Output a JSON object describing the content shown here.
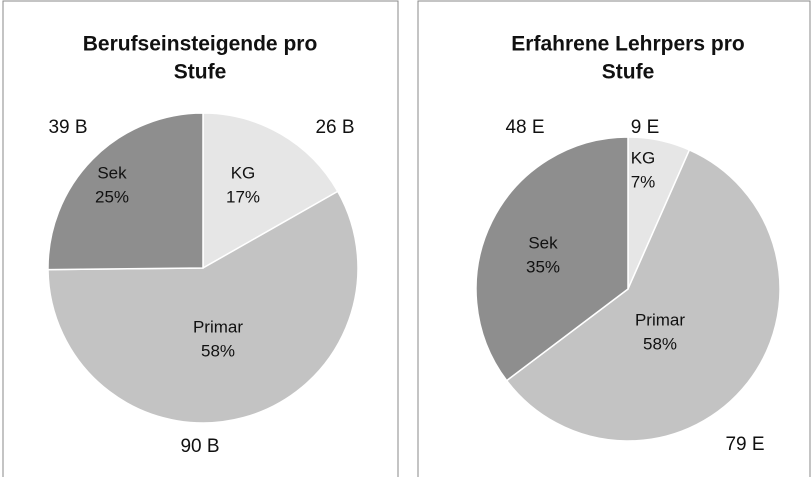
{
  "chart_data": [
    {
      "type": "pie",
      "title": [
        "Berufseinsteigende pro",
        "Stufe"
      ],
      "categories": [
        "KG",
        "Primar",
        "Sek"
      ],
      "values": [
        26,
        90,
        39
      ],
      "value_labels": [
        "26 B",
        "90 B",
        "39 B"
      ],
      "percent_labels": [
        "17%",
        "58%",
        "25%"
      ],
      "colors": [
        "#e6e6e6",
        "#c3c3c3",
        "#8e8e8e"
      ]
    },
    {
      "type": "pie",
      "title": [
        "Erfahrene Lehrpers pro",
        "Stufe"
      ],
      "categories": [
        "KG",
        "Primar",
        "Sek"
      ],
      "values": [
        9,
        79,
        48
      ],
      "value_labels": [
        "9 E",
        "79 E",
        "48 E"
      ],
      "percent_labels": [
        "7%",
        "58%",
        "35%"
      ],
      "colors": [
        "#e6e6e6",
        "#c3c3c3",
        "#8e8e8e"
      ]
    }
  ]
}
